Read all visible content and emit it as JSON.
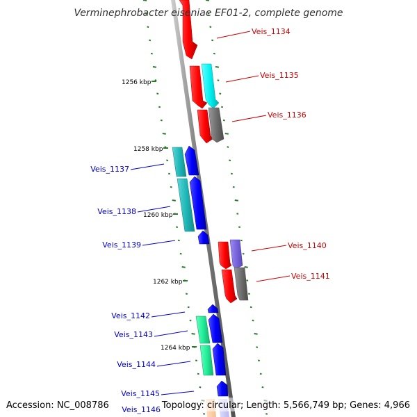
{
  "title": "Verminephrobacter eiseniae EF01-2, complete genome",
  "footer": {
    "accession": "Accession: NC_008786",
    "topology": "Topology: circular; Length: 5,566,749 bp; Genes: 4,966"
  },
  "colors": {
    "backbone": "#808080",
    "ticks": "#2a7a2a",
    "forward_label": "#cc0000",
    "reverse_label": "#0000cc"
  },
  "kbp_labels": [
    "1256 kbp",
    "1258 kbp",
    "1260 kbp",
    "1262 kbp",
    "1264 kbp"
  ],
  "genes": [
    {
      "name": "Veis_1134",
      "strand": "forward"
    },
    {
      "name": "Veis_1135",
      "strand": "forward"
    },
    {
      "name": "Veis_1136",
      "strand": "forward"
    },
    {
      "name": "Veis_1137",
      "strand": "reverse"
    },
    {
      "name": "Veis_1138",
      "strand": "reverse"
    },
    {
      "name": "Veis_1139",
      "strand": "reverse"
    },
    {
      "name": "Veis_1140",
      "strand": "forward"
    },
    {
      "name": "Veis_1141",
      "strand": "forward"
    },
    {
      "name": "Veis_1142",
      "strand": "reverse"
    },
    {
      "name": "Veis_1143",
      "strand": "reverse"
    },
    {
      "name": "Veis_1144",
      "strand": "reverse"
    },
    {
      "name": "Veis_1145",
      "strand": "reverse"
    },
    {
      "name": "Veis_1146",
      "strand": "reverse"
    }
  ]
}
